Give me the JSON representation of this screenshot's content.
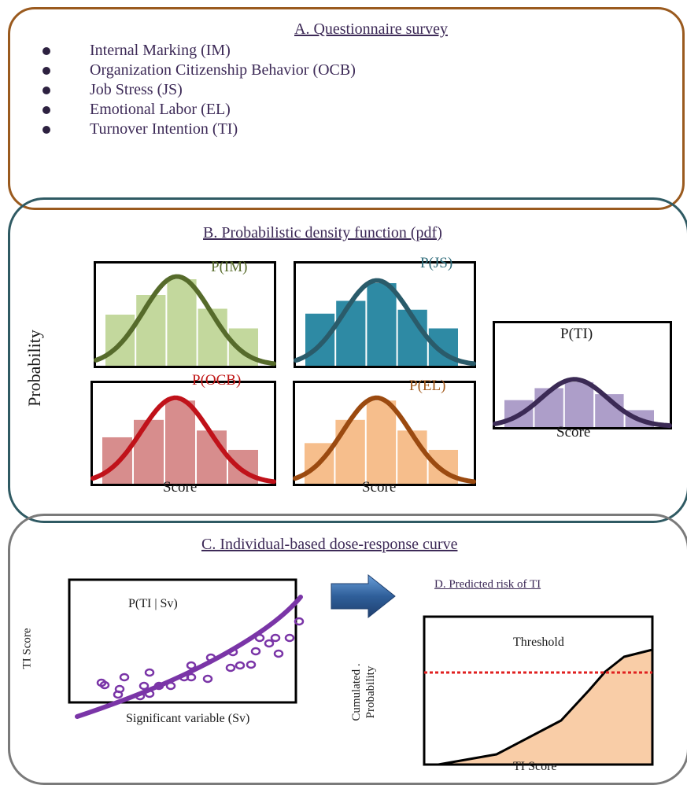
{
  "panel_a": {
    "title": "A. Questionnaire survey",
    "items": [
      "Internal Marking (IM)",
      "Organization Citizenship Behavior (OCB)",
      "Job Stress (JS)",
      "Emotional Labor (EL)",
      "Turnover Intention (TI)"
    ]
  },
  "panel_b": {
    "title": "B. Probabilistic density function (pdf)",
    "y_axis_label": "Probability",
    "x_axis_label": "Score",
    "charts": [
      {
        "label": "P(IM)",
        "color": "#566b2b",
        "bar_color": "#c3d89d",
        "label_color": "#5a6e2e",
        "bars": [
          0.52,
          0.72,
          0.88,
          0.58,
          0.38
        ]
      },
      {
        "label": "P(JS)",
        "color": "#2a5b6a",
        "bar_color": "#2e8aa4",
        "label_color": "#2e6b7a",
        "bars": [
          0.53,
          0.66,
          0.84,
          0.57,
          0.38
        ]
      },
      {
        "label": "P(OCB)",
        "color": "#c0121a",
        "bar_color": "#d78d8d",
        "label_color": "#c01616",
        "bars": [
          0.48,
          0.66,
          0.86,
          0.55,
          0.35
        ]
      },
      {
        "label": "P(EL)",
        "color": "#9b4a10",
        "bar_color": "#f6be8c",
        "label_color": "#a35a1c",
        "bars": [
          0.42,
          0.66,
          0.86,
          0.55,
          0.35
        ]
      },
      {
        "label": "P(TI)",
        "color": "#3b2a55",
        "bar_color": "#ad9ec9",
        "label_color": "#1a1a1a",
        "bars": [
          0.27,
          0.39,
          0.45,
          0.33,
          0.17
        ]
      }
    ]
  },
  "panel_c": {
    "title": "C. Individual-based dose-response curve",
    "y_axis_label": "TI Score",
    "x_axis_label": "Significant variable (Sv)",
    "curve_label": "P(TI | Sv)",
    "curve_color": "#7a35a7"
  },
  "panel_d": {
    "title": "D. Predicted risk of TI",
    "y_axis_label_line1": "Cumulated .",
    "y_axis_label_line2": "Probability",
    "x_axis_label": "TI Score",
    "threshold_label": "Threshold",
    "threshold_color": "#e02020",
    "fill_color": "#f9cda7"
  },
  "arrow_color": "#2f5f9a"
}
